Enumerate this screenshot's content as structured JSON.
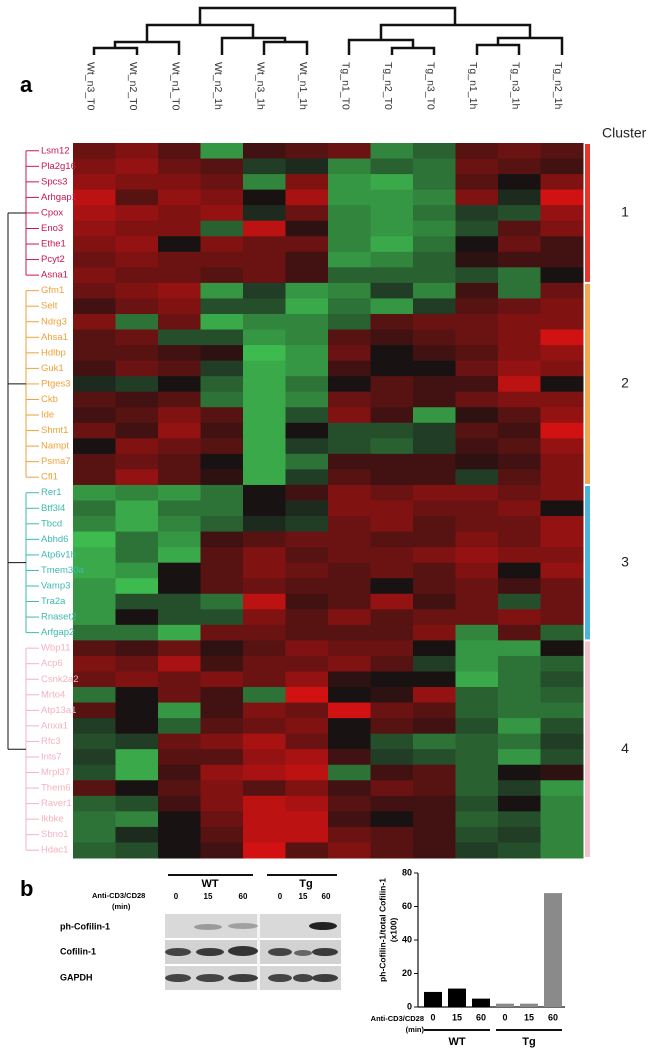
{
  "panel_labels": {
    "a": "a",
    "b": "b"
  },
  "chart_data": [
    {
      "type": "heatmap",
      "legend_title": "Cluster",
      "columns": [
        "Wt_n3_T0",
        "Wt_n2_T0",
        "Wt_n1_T0",
        "Wt_n2_1h",
        "Wt_n3_1h",
        "Wt_n1_1h",
        "Tg_n1_T0",
        "Tg_n2_T0",
        "Tg_n3_T0",
        "Tg_n1_1h",
        "Tg_n3_1h",
        "Tg_n2_1h"
      ],
      "clusters": [
        {
          "name": "1",
          "color": "#c8174d",
          "bar_color": "#e8352c",
          "genes": [
            "Lsm12",
            "Pla2g16",
            "Spcs3",
            "Arhgap1",
            "Cpox",
            "Eno3",
            "Ethe1",
            "Pcyt2",
            "Asna1"
          ],
          "values": [
            [
              0.4,
              0.5,
              0.3,
              -0.7,
              0.2,
              0.3,
              0.4,
              -0.6,
              -0.4,
              0.3,
              0.4,
              0.3
            ],
            [
              0.5,
              0.6,
              0.4,
              0.3,
              -0.2,
              -0.1,
              -0.6,
              -0.4,
              -0.5,
              0.4,
              0.3,
              0.2
            ],
            [
              0.6,
              0.5,
              0.5,
              0.4,
              -0.6,
              0.5,
              -0.7,
              -0.8,
              -0.5,
              0.3,
              0.0,
              0.5
            ],
            [
              0.8,
              0.3,
              0.6,
              0.5,
              0.0,
              0.7,
              -0.7,
              -0.7,
              -0.6,
              0.5,
              -0.1,
              0.9
            ],
            [
              0.7,
              0.6,
              0.5,
              0.6,
              -0.1,
              0.4,
              -0.6,
              -0.7,
              -0.5,
              -0.2,
              -0.3,
              0.6
            ],
            [
              0.6,
              0.5,
              0.5,
              -0.4,
              0.8,
              0.1,
              -0.6,
              -0.7,
              -0.6,
              -0.3,
              0.3,
              0.5
            ],
            [
              0.5,
              0.6,
              0.0,
              0.5,
              0.4,
              0.4,
              -0.6,
              -0.8,
              -0.5,
              0.0,
              0.4,
              0.2
            ],
            [
              0.4,
              0.5,
              0.4,
              0.4,
              0.4,
              0.2,
              -0.7,
              -0.6,
              -0.4,
              0.1,
              0.2,
              0.2
            ],
            [
              0.5,
              0.4,
              0.4,
              0.3,
              0.4,
              0.2,
              -0.4,
              -0.4,
              -0.4,
              -0.3,
              -0.5,
              0.0
            ]
          ]
        },
        {
          "name": "2",
          "color": "#eea23a",
          "bar_color": "#f2a851",
          "genes": [
            "Gfm1",
            "Selt",
            "Ndrg3",
            "Ahsa1",
            "Hdlbp",
            "Guk1",
            "Ptges3",
            "Ckb",
            "Ide",
            "Shmt1",
            "Nampt",
            "Psma7",
            "Cfl1"
          ],
          "values": [
            [
              0.4,
              0.5,
              0.6,
              -0.7,
              -0.2,
              -0.7,
              -0.6,
              -0.2,
              -0.6,
              0.2,
              -0.5,
              0.4
            ],
            [
              0.2,
              0.4,
              0.5,
              -0.3,
              -0.3,
              -0.8,
              -0.5,
              -0.7,
              -0.2,
              0.3,
              0.4,
              0.5
            ],
            [
              0.5,
              -0.5,
              0.4,
              -0.8,
              -0.6,
              -0.6,
              -0.4,
              0.3,
              0.4,
              0.4,
              0.5,
              0.5
            ],
            [
              0.3,
              0.4,
              -0.3,
              -0.3,
              -0.7,
              -0.6,
              0.3,
              0.2,
              0.3,
              0.4,
              0.5,
              0.9
            ],
            [
              0.3,
              0.3,
              0.2,
              0.1,
              -0.9,
              -0.7,
              0.4,
              0.0,
              0.2,
              0.3,
              0.5,
              0.6
            ],
            [
              0.2,
              0.4,
              0.3,
              -0.2,
              -0.8,
              -0.7,
              0.2,
              0.0,
              0.0,
              0.4,
              0.6,
              0.5
            ],
            [
              -0.1,
              -0.2,
              0.0,
              -0.4,
              -0.8,
              -0.5,
              0.0,
              0.3,
              0.2,
              0.2,
              0.8,
              0.0
            ],
            [
              0.3,
              0.2,
              0.3,
              -0.5,
              -0.8,
              -0.6,
              0.4,
              0.3,
              0.2,
              0.4,
              0.5,
              0.5
            ],
            [
              0.2,
              0.3,
              0.5,
              0.3,
              -0.8,
              -0.3,
              0.5,
              0.2,
              -0.7,
              0.1,
              0.3,
              0.6
            ],
            [
              0.4,
              0.2,
              0.6,
              0.2,
              -0.8,
              0.0,
              -0.3,
              -0.3,
              -0.2,
              0.3,
              0.2,
              0.9
            ],
            [
              0.0,
              0.5,
              0.4,
              0.3,
              -0.8,
              -0.2,
              -0.3,
              -0.4,
              -0.2,
              0.2,
              0.3,
              0.6
            ],
            [
              0.3,
              0.4,
              0.3,
              0.0,
              -0.8,
              -0.5,
              0.2,
              0.2,
              0.2,
              0.1,
              0.2,
              0.5
            ],
            [
              0.3,
              0.6,
              0.3,
              0.1,
              -0.8,
              -0.2,
              0.3,
              0.2,
              0.2,
              -0.2,
              0.3,
              0.5
            ]
          ]
        },
        {
          "name": "3",
          "color": "#3cbab0",
          "bar_color": "#4db4da",
          "genes": [
            "Rer1",
            "Btf3l4",
            "Tbcd",
            "Abhd6",
            "Atp6v1h",
            "Tmem30a",
            "Vamp3",
            "Tra2a",
            "Rnaset2",
            "Arfgap2"
          ],
          "values": [
            [
              -0.7,
              -0.6,
              -0.7,
              -0.5,
              0.0,
              0.2,
              0.5,
              0.4,
              0.5,
              0.5,
              0.4,
              0.5
            ],
            [
              -0.5,
              -0.8,
              -0.5,
              -0.5,
              0.0,
              -0.1,
              0.5,
              0.5,
              0.4,
              0.4,
              0.5,
              0.0
            ],
            [
              -0.6,
              -0.8,
              -0.6,
              -0.4,
              -0.1,
              -0.2,
              0.4,
              0.5,
              0.3,
              0.4,
              0.4,
              0.6
            ],
            [
              -0.9,
              -0.5,
              -0.7,
              0.2,
              0.3,
              0.4,
              0.4,
              0.3,
              0.3,
              0.5,
              0.4,
              0.6
            ],
            [
              -0.8,
              -0.5,
              -0.8,
              0.3,
              0.5,
              0.3,
              0.4,
              0.4,
              0.5,
              0.6,
              0.5,
              0.5
            ],
            [
              -0.8,
              -0.7,
              0.0,
              0.3,
              0.5,
              0.4,
              0.3,
              0.4,
              0.3,
              0.5,
              0.0,
              0.6
            ],
            [
              -0.7,
              -0.9,
              0.0,
              0.3,
              0.4,
              0.3,
              0.3,
              0.0,
              0.3,
              0.4,
              0.2,
              0.4
            ],
            [
              -0.7,
              -0.3,
              -0.3,
              -0.5,
              0.8,
              0.2,
              0.3,
              0.6,
              0.2,
              0.4,
              -0.3,
              0.4
            ],
            [
              -0.7,
              0.0,
              -0.3,
              -0.3,
              0.5,
              0.3,
              0.5,
              0.3,
              0.4,
              0.4,
              0.5,
              0.4
            ],
            [
              -0.5,
              -0.5,
              -0.8,
              0.4,
              0.4,
              0.3,
              0.3,
              0.3,
              0.5,
              -0.6,
              0.3,
              -0.4
            ]
          ]
        },
        {
          "name": "4",
          "color": "#f3b3c0",
          "bar_color": "#f2c3cb",
          "genes": [
            "Wbp11",
            "Acp6",
            "Csnk2a2",
            "Mrto4",
            "Atp13a1",
            "Anxa1",
            "Rfc3",
            "Ints7",
            "Mrpl37",
            "Them6",
            "Raver1",
            "Ikbke",
            "Sbno1",
            "Hdac1"
          ],
          "values": [
            [
              0.3,
              0.2,
              0.4,
              0.1,
              0.3,
              0.5,
              0.4,
              0.4,
              0.0,
              -0.7,
              -0.7,
              0.0
            ],
            [
              0.5,
              0.4,
              0.7,
              0.2,
              0.4,
              0.4,
              0.5,
              0.3,
              -0.2,
              -0.7,
              -0.5,
              -0.4
            ],
            [
              0.4,
              0.5,
              0.4,
              0.5,
              0.4,
              0.6,
              0.1,
              0.0,
              0.0,
              -0.8,
              -0.5,
              -0.3
            ],
            [
              -0.5,
              0.0,
              0.4,
              0.2,
              -0.5,
              0.9,
              0.0,
              0.1,
              0.6,
              -0.4,
              -0.5,
              -0.4
            ],
            [
              0.3,
              0.0,
              -0.7,
              0.2,
              0.5,
              0.4,
              0.9,
              0.4,
              0.3,
              -0.4,
              -0.5,
              -0.5
            ],
            [
              -0.2,
              0.0,
              -0.4,
              0.3,
              0.4,
              0.5,
              0.0,
              0.3,
              0.2,
              -0.3,
              -0.7,
              -0.3
            ],
            [
              -0.3,
              -0.2,
              0.4,
              0.5,
              0.7,
              0.4,
              0.0,
              -0.3,
              -0.5,
              -0.4,
              -0.5,
              -0.2
            ],
            [
              -0.2,
              -0.8,
              0.3,
              0.3,
              0.6,
              0.7,
              0.2,
              -0.2,
              -0.3,
              -0.4,
              -0.7,
              -0.3
            ],
            [
              -0.3,
              -0.8,
              0.2,
              0.6,
              0.7,
              0.8,
              -0.5,
              0.2,
              0.3,
              -0.4,
              0.0,
              0.1
            ],
            [
              0.3,
              0.0,
              0.3,
              0.5,
              0.3,
              0.5,
              0.2,
              0.4,
              0.3,
              -0.4,
              -0.2,
              -0.7
            ],
            [
              -0.4,
              -0.3,
              0.2,
              0.5,
              0.8,
              0.7,
              0.3,
              0.2,
              0.2,
              -0.3,
              0.0,
              -0.6
            ],
            [
              -0.5,
              -0.6,
              0.0,
              0.4,
              0.8,
              0.8,
              0.2,
              0.0,
              0.2,
              -0.4,
              -0.3,
              -0.6
            ],
            [
              -0.5,
              -0.1,
              0.0,
              0.3,
              0.8,
              0.8,
              0.4,
              0.3,
              0.2,
              -0.3,
              -0.2,
              -0.6
            ],
            [
              -0.4,
              -0.3,
              0.0,
              0.2,
              0.9,
              0.3,
              0.5,
              0.3,
              0.2,
              -0.2,
              -0.3,
              -0.6
            ]
          ]
        }
      ]
    },
    {
      "type": "bar",
      "ylabel": [
        "ph-Cofilin-1/total Cofilin-1",
        "(x100)"
      ],
      "xlabel": [
        "Anti-CD3/CD28",
        "(min)"
      ],
      "categories": [
        "0",
        "15",
        "60",
        "0",
        "15",
        "60"
      ],
      "series": [
        {
          "name": "WT",
          "color": "#000000",
          "values": [
            9,
            11,
            5,
            null,
            null,
            null
          ]
        },
        {
          "name": "Tg",
          "color": "#8a8a8a",
          "values": [
            null,
            null,
            null,
            2,
            2,
            68
          ]
        }
      ],
      "ylim": [
        0,
        80
      ],
      "yticks": [
        0,
        20,
        40,
        60,
        80
      ]
    }
  ],
  "blot": {
    "treatment": [
      "Anti-CD3/CD28",
      "(min)"
    ],
    "groups": [
      "WT",
      "Tg"
    ],
    "lanes": [
      "0",
      "15",
      "60",
      "0",
      "15",
      "60"
    ],
    "rows": [
      "ph-Cofilin-1",
      "Cofilin-1",
      "GAPDH"
    ]
  }
}
